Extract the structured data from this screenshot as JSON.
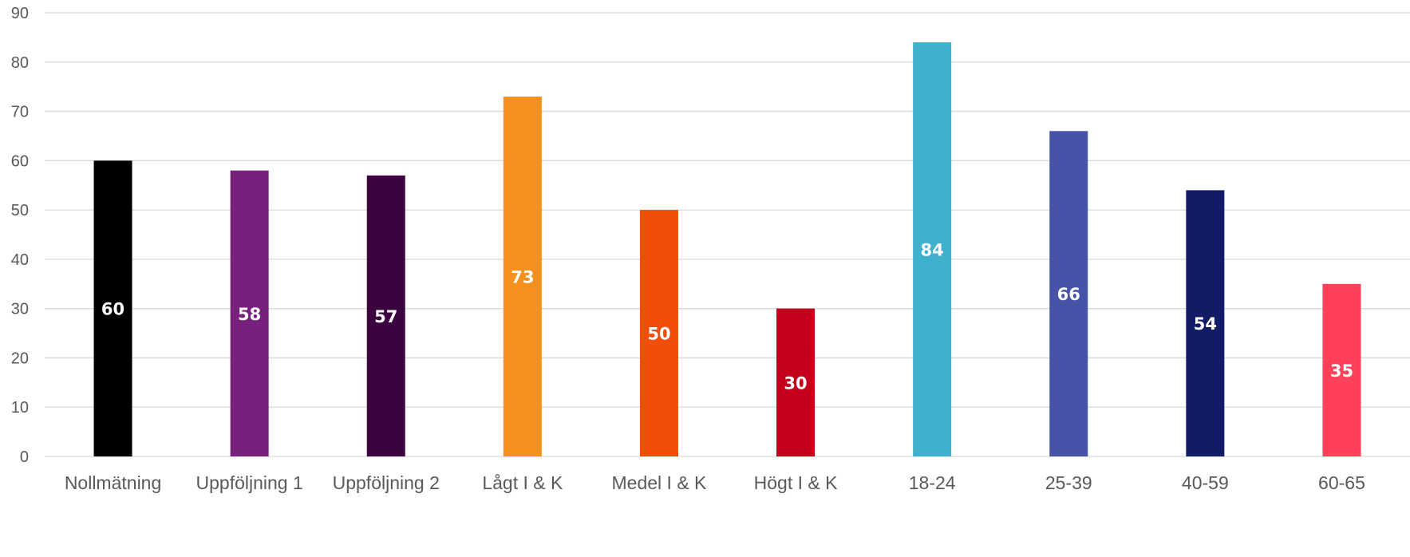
{
  "chart_data": {
    "type": "bar",
    "categories": [
      "Nollmätning",
      "Uppföljning 1",
      "Uppföljning 2",
      "Lågt I & K",
      "Medel I & K",
      "Högt I & K",
      "18-24",
      "25-39",
      "40-59",
      "60-65"
    ],
    "values": [
      60,
      58,
      57,
      73,
      50,
      30,
      84,
      66,
      54,
      35
    ],
    "colors": [
      "#000000",
      "#77217c",
      "#3b0340",
      "#f4901e",
      "#f04e0a",
      "#c4001a",
      "#3fb1cc",
      "#4753a6",
      "#121c66",
      "#ff425a"
    ],
    "title": "",
    "xlabel": "",
    "ylabel": "",
    "ylim": [
      0,
      90
    ],
    "yticks": [
      0,
      10,
      20,
      30,
      40,
      50,
      60,
      70,
      80,
      90
    ],
    "grid": true,
    "data_labels": true,
    "legend": "none"
  }
}
